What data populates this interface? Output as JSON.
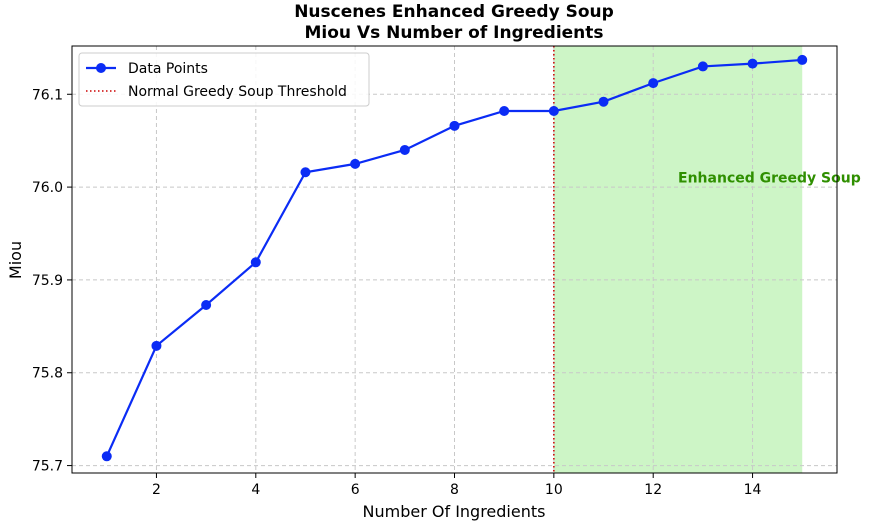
{
  "chart_data": {
    "type": "line",
    "title_line1": "Nuscenes Enhanced Greedy Soup",
    "title_line2": "Miou Vs Number of Ingredients",
    "xlabel": "Number Of Ingredients",
    "ylabel": "Miou",
    "xlim": [
      0.3,
      15.7
    ],
    "ylim": [
      75.692,
      76.152
    ],
    "x_ticks": [
      2,
      4,
      6,
      8,
      10,
      12,
      14
    ],
    "y_ticks": [
      75.7,
      75.8,
      75.9,
      76.0,
      76.1
    ],
    "grid": true,
    "legend_position": "top-left",
    "series": [
      {
        "name": "Data Points",
        "color": "#0b2cf5",
        "x": [
          1,
          2,
          3,
          4,
          5,
          6,
          7,
          8,
          9,
          10,
          11,
          12,
          13,
          14,
          15
        ],
        "y": [
          75.71,
          75.829,
          75.873,
          75.919,
          76.016,
          76.025,
          76.04,
          76.066,
          76.082,
          76.082,
          76.092,
          76.112,
          76.13,
          76.133,
          76.137
        ]
      }
    ],
    "threshold": {
      "name": "Normal Greedy Soup Threshold",
      "x": 10,
      "color": "#cc0000"
    },
    "shaded_region": {
      "x0": 10,
      "x1": 15,
      "color": "#cdf5c6",
      "label": "Enhanced Greedy Soup",
      "label_color": "#2f8f00",
      "label_x": 12.5,
      "label_y": 76.005
    }
  }
}
